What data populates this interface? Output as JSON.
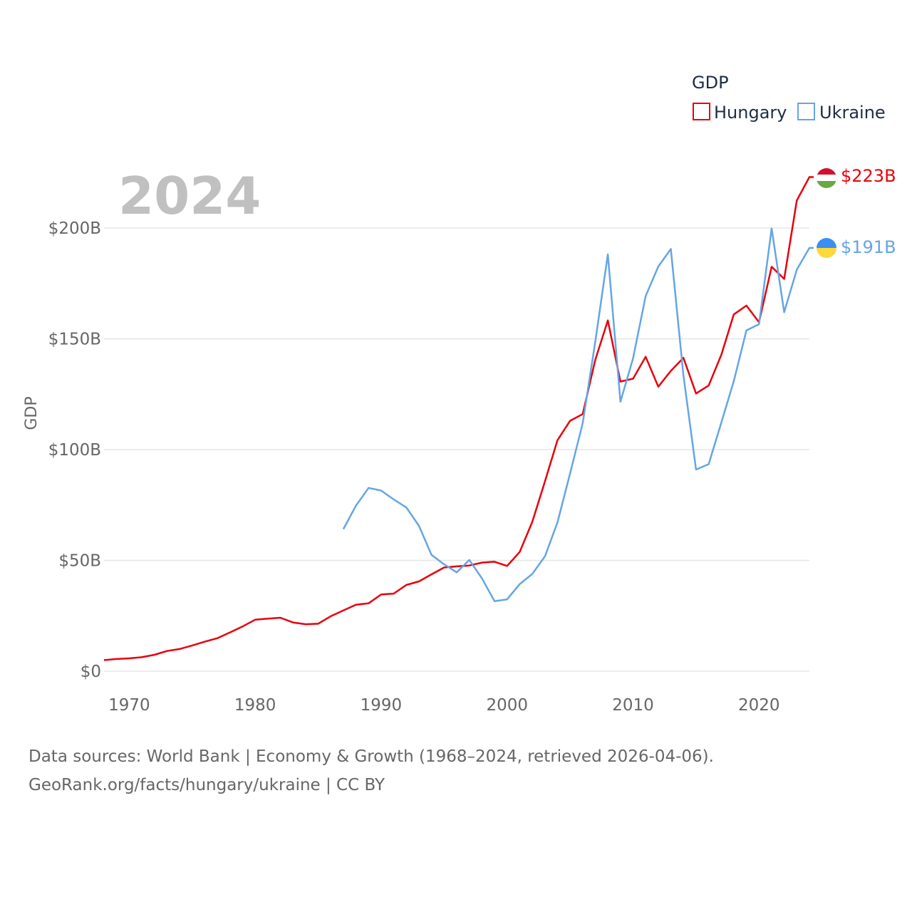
{
  "chart_data": {
    "type": "line",
    "title": "GDP",
    "year_label": "2024",
    "ylabel": "GDP",
    "xlim": [
      1968,
      2024
    ],
    "ylim": [
      0,
      223
    ],
    "y_ticks": [
      0,
      50,
      100,
      150,
      200
    ],
    "y_tick_labels": [
      "$0",
      "$50B",
      "$100B",
      "$150B",
      "$200B"
    ],
    "x_ticks": [
      1970,
      1980,
      1990,
      2000,
      2010,
      2020
    ],
    "x_tick_labels": [
      "1970",
      "1980",
      "1990",
      "2000",
      "2010",
      "2020"
    ],
    "legend_title": "GDP",
    "legend_position": "top-right",
    "series": [
      {
        "name": "Hungary",
        "color": "#e8000b",
        "end_label": "$223B",
        "flag_icon": "hungary-flag-icon",
        "x": [
          1968,
          1969,
          1970,
          1971,
          1972,
          1973,
          1974,
          1975,
          1976,
          1977,
          1978,
          1979,
          1980,
          1981,
          1982,
          1983,
          1984,
          1985,
          1986,
          1987,
          1988,
          1989,
          1990,
          1991,
          1992,
          1993,
          1994,
          1995,
          1996,
          1997,
          1998,
          1999,
          2000,
          2001,
          2002,
          2003,
          2004,
          2005,
          2006,
          2007,
          2008,
          2009,
          2010,
          2011,
          2012,
          2013,
          2014,
          2015,
          2016,
          2017,
          2018,
          2019,
          2020,
          2021,
          2022,
          2023,
          2024
        ],
        "values": [
          5,
          5.5,
          5.8,
          6.3,
          7.4,
          9.1,
          10,
          11.6,
          13.3,
          14.9,
          17.5,
          20.2,
          23.2,
          23.7,
          24.1,
          22,
          21.2,
          21.4,
          24.8,
          27.4,
          30,
          30.6,
          34.6,
          35,
          38.9,
          40.5,
          43.7,
          46.8,
          47.3,
          47.7,
          49,
          49.4,
          47.5,
          53.8,
          67.4,
          85.6,
          104.2,
          113,
          116,
          140.5,
          158.3,
          130.7,
          132,
          141.9,
          128.4,
          135.5,
          141.4,
          125.3,
          128.9,
          142.7,
          161,
          165,
          157.5,
          182.5,
          177,
          212.4,
          223
        ]
      },
      {
        "name": "Ukraine",
        "color": "#64a5e6",
        "end_label": "$191B",
        "flag_icon": "ukraine-flag-icon",
        "x": [
          1987,
          1988,
          1989,
          1990,
          1991,
          1992,
          1993,
          1994,
          1995,
          1996,
          1997,
          1998,
          1999,
          2000,
          2001,
          2002,
          2003,
          2004,
          2005,
          2006,
          2007,
          2008,
          2009,
          2010,
          2011,
          2012,
          2013,
          2014,
          2015,
          2016,
          2017,
          2018,
          2019,
          2020,
          2021,
          2022,
          2023,
          2024
        ],
        "values": [
          64.1,
          74.7,
          82.7,
          81.5,
          77.5,
          73.9,
          65.6,
          52.5,
          48.2,
          44.6,
          50.2,
          41.9,
          31.6,
          32.4,
          39.3,
          43.9,
          51.8,
          67.1,
          89.2,
          111.9,
          148.7,
          188.1,
          121.6,
          141.2,
          169.3,
          182.6,
          190.5,
          133.5,
          91,
          93.4,
          112.1,
          130.9,
          153.8,
          156.6,
          199.8,
          162,
          181.2,
          191
        ]
      }
    ]
  },
  "footer": {
    "source_line1": "Data sources: World Bank | Economy & Growth (1968–2024, retrieved 2026-04-06).",
    "source_line2": "GeoRank.org/facts/hungary/ukraine | CC BY"
  }
}
